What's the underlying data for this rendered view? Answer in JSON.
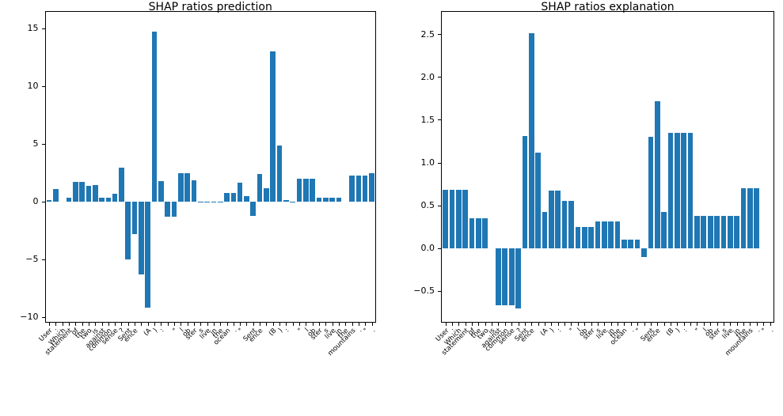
{
  "figure": {
    "background": "#ffffff",
    "bar_color": "#1f77b4",
    "axis_color": "#000000"
  },
  "chart_data": [
    {
      "type": "bar",
      "title": "SHAP ratios prediction",
      "xlabel": "",
      "ylabel": "",
      "grid": false,
      "legend": "none",
      "xtick_rotation": 45,
      "ylim": [
        -10.5,
        16.5
      ],
      "ytick_values": [
        15,
        10,
        5,
        0,
        -5,
        -10
      ],
      "ytick_labels": [
        "15",
        "10",
        "5",
        "0",
        "−5",
        "−10"
      ],
      "categories": [
        "User",
        ":",
        "Which",
        "statement",
        "of",
        "the",
        "two",
        "is",
        "against",
        "common",
        "sense",
        "?",
        "Sent",
        "ence",
        " ",
        "(A",
        ")",
        ":",
        " ",
        "\"",
        "l",
        "ob",
        "ster",
        "s",
        "live",
        "in",
        "the",
        "ocean",
        ".",
        "\"",
        " ",
        "Sent",
        "ence",
        " ",
        "(B",
        ")",
        ":",
        " ",
        "\"",
        "l",
        "ob",
        "ster",
        "s",
        "live",
        "in",
        "the",
        "mountains",
        ".",
        "\"",
        "."
      ],
      "values": [
        0.1,
        1.05,
        0.0,
        0.3,
        1.7,
        1.7,
        1.35,
        1.4,
        0.35,
        0.35,
        0.7,
        2.9,
        -5.0,
        -2.8,
        -6.3,
        -9.2,
        14.7,
        1.75,
        -1.35,
        -1.35,
        2.45,
        2.45,
        1.85,
        -0.1,
        -0.1,
        -0.1,
        -0.1,
        0.75,
        0.75,
        1.6,
        0.45,
        -1.25,
        2.35,
        1.15,
        13.0,
        4.85,
        0.1,
        -0.05,
        2.0,
        2.0,
        2.0,
        0.3,
        0.3,
        0.3,
        0.3,
        0.0,
        2.25,
        2.25,
        2.25,
        2.45
      ]
    },
    {
      "type": "bar",
      "title": "SHAP ratios explanation",
      "xlabel": "",
      "ylabel": "",
      "grid": false,
      "legend": "none",
      "xtick_rotation": 45,
      "ylim": [
        -0.87,
        2.77
      ],
      "ytick_values": [
        2.5,
        2.0,
        1.5,
        1.0,
        0.5,
        0.0,
        -0.5
      ],
      "ytick_labels": [
        "2.5",
        "2.0",
        "1.5",
        "1.0",
        "0.5",
        "0.0",
        "−0.5"
      ],
      "categories": [
        "User",
        ":",
        "Which",
        "statement",
        "of",
        "the",
        "two",
        "is",
        "against",
        "common",
        "sense",
        "?",
        "Sent",
        "ence",
        " ",
        "(A",
        ")",
        ":",
        " ",
        "\"",
        "l",
        "ob",
        "ster",
        "s",
        "live",
        "in",
        "the",
        "ocean",
        ".",
        "\"",
        " ",
        "Sent",
        "ence",
        " ",
        "(B",
        ")",
        ":",
        " ",
        "\"",
        "l",
        "ob",
        "ster",
        "s",
        "live",
        "in",
        "the",
        "mountains",
        ".",
        "\"",
        "."
      ],
      "values": [
        0.68,
        0.68,
        0.68,
        0.68,
        0.35,
        0.35,
        0.35,
        0.0,
        -0.67,
        -0.67,
        -0.67,
        -0.7,
        1.31,
        2.51,
        1.12,
        0.42,
        0.67,
        0.67,
        0.55,
        0.55,
        0.25,
        0.25,
        0.25,
        0.31,
        0.31,
        0.31,
        0.31,
        0.1,
        0.1,
        0.1,
        -0.1,
        1.3,
        1.72,
        0.42,
        1.35,
        1.35,
        1.35,
        1.35,
        0.38,
        0.38,
        0.38,
        0.38,
        0.38,
        0.38,
        0.38,
        0.7,
        0.7,
        0.7,
        0.0,
        0.0
      ]
    }
  ]
}
